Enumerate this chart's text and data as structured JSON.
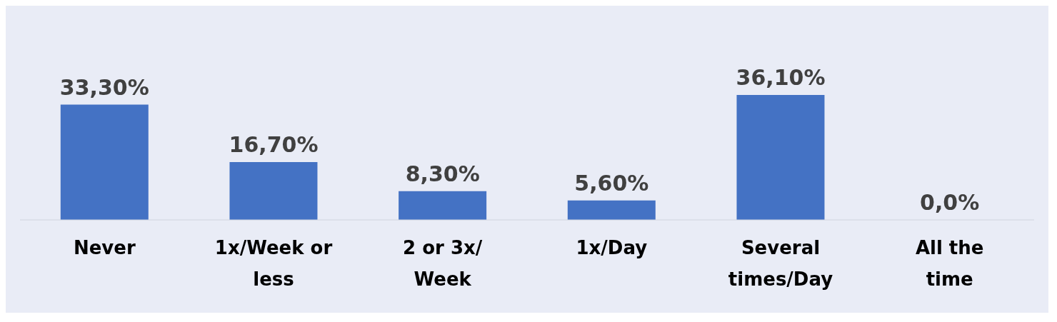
{
  "chart_data": {
    "type": "bar",
    "categories": [
      "Never",
      "1x/Week or less",
      "2 or 3x/ Week",
      "1x/Day",
      "Several times/Day",
      "All the time"
    ],
    "values": [
      33.3,
      16.7,
      8.3,
      5.6,
      36.1,
      0.0
    ],
    "value_labels": [
      "33,30%",
      "16,70%",
      "8,30%",
      "5,60%",
      "36,10%",
      "0,0%"
    ],
    "color": "#4472c4",
    "grid": false,
    "legend": false
  }
}
